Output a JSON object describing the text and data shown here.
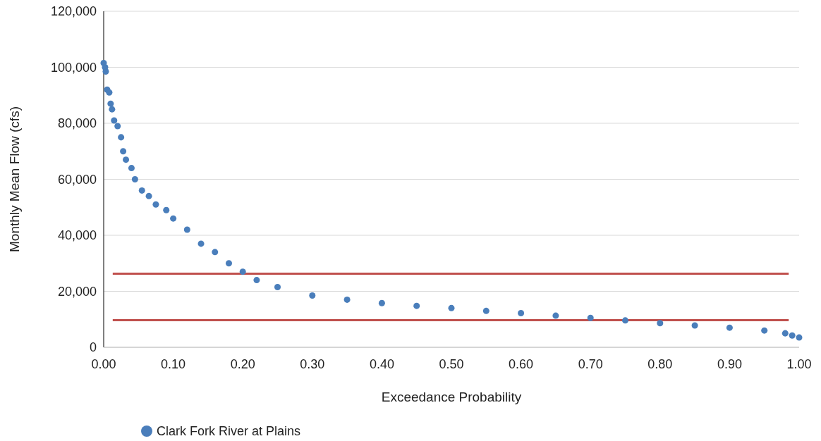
{
  "chart_data": {
    "type": "scatter",
    "xlabel": "Exceedance Probability",
    "ylabel": "Monthly Mean Flow (cfs)",
    "xlim": [
      0,
      1
    ],
    "ylim": [
      0,
      120000
    ],
    "xticks": [
      {
        "value": 0,
        "label": "0.00"
      },
      {
        "value": 0.1,
        "label": "0.10"
      },
      {
        "value": 0.2,
        "label": "0.20"
      },
      {
        "value": 0.3,
        "label": "0.30"
      },
      {
        "value": 0.4,
        "label": "0.40"
      },
      {
        "value": 0.5,
        "label": "0.50"
      },
      {
        "value": 0.6,
        "label": "0.60"
      },
      {
        "value": 0.7,
        "label": "0.70"
      },
      {
        "value": 0.8,
        "label": "0.80"
      },
      {
        "value": 0.9,
        "label": "0.90"
      },
      {
        "value": 1,
        "label": "1.00"
      }
    ],
    "yticks": [
      0,
      {
        "value": 20000,
        "label": "20,000"
      },
      {
        "value": 40000,
        "label": "40,000"
      },
      {
        "value": 60000,
        "label": "60,000"
      },
      {
        "value": 80000,
        "label": "80,000"
      },
      {
        "value": 100000,
        "label": "100,000"
      },
      {
        "value": 120000,
        "label": "120,000"
      }
    ],
    "grid": "y",
    "legend": "bottom left",
    "marker": "circle",
    "series": [
      {
        "name": "Clark Fork River at Plains",
        "color": "#4a7ebb",
        "x": [
          0,
          0.002,
          0.003,
          0.005,
          0.008,
          0.01,
          0.012,
          0.015,
          0.02,
          0.025,
          0.028,
          0.032,
          0.04,
          0.045,
          0.055,
          0.065,
          0.075,
          0.09,
          0.1,
          0.12,
          0.14,
          0.16,
          0.18,
          0.2,
          0.22,
          0.25,
          0.3,
          0.35,
          0.4,
          0.45,
          0.5,
          0.55,
          0.6,
          0.65,
          0.7,
          0.75,
          0.8,
          0.85,
          0.9,
          0.95,
          0.98,
          0.99,
          1
        ],
        "values": [
          101500,
          100000,
          98500,
          92000,
          91000,
          87000,
          85000,
          81000,
          79000,
          75000,
          70000,
          67000,
          64000,
          60000,
          56000,
          54000,
          51000,
          49000,
          46000,
          42000,
          37000,
          34000,
          30000,
          27000,
          24000,
          21500,
          18500,
          17000,
          15800,
          14800,
          14000,
          13000,
          12200,
          11300,
          10500,
          9600,
          8600,
          7800,
          7000,
          6000,
          5000,
          4200,
          3500
        ]
      }
    ],
    "ref_lines": [
      {
        "axis": "y",
        "value": 26300,
        "color": "#c0504d"
      },
      {
        "axis": "y",
        "value": 9700,
        "color": "#c0504d"
      }
    ]
  }
}
